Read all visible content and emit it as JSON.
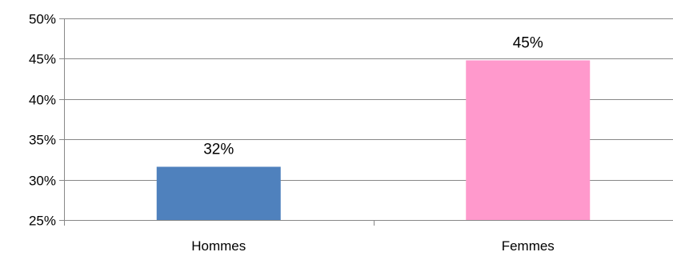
{
  "chart_data": {
    "type": "bar",
    "title": "",
    "xlabel": "",
    "ylabel": "",
    "categories": [
      "Hommes",
      "Femmes"
    ],
    "values": [
      31.6,
      44.8
    ],
    "data_labels": [
      "32%",
      "45%"
    ],
    "colors": [
      "#4f81bd",
      "#ff99cc"
    ],
    "ylim": [
      25,
      50
    ],
    "yticks": [
      25,
      30,
      35,
      40,
      45,
      50
    ],
    "ytick_labels": [
      "25%",
      "30%",
      "35%",
      "40%",
      "45%",
      "50%"
    ],
    "grid": true,
    "legend": "none"
  }
}
